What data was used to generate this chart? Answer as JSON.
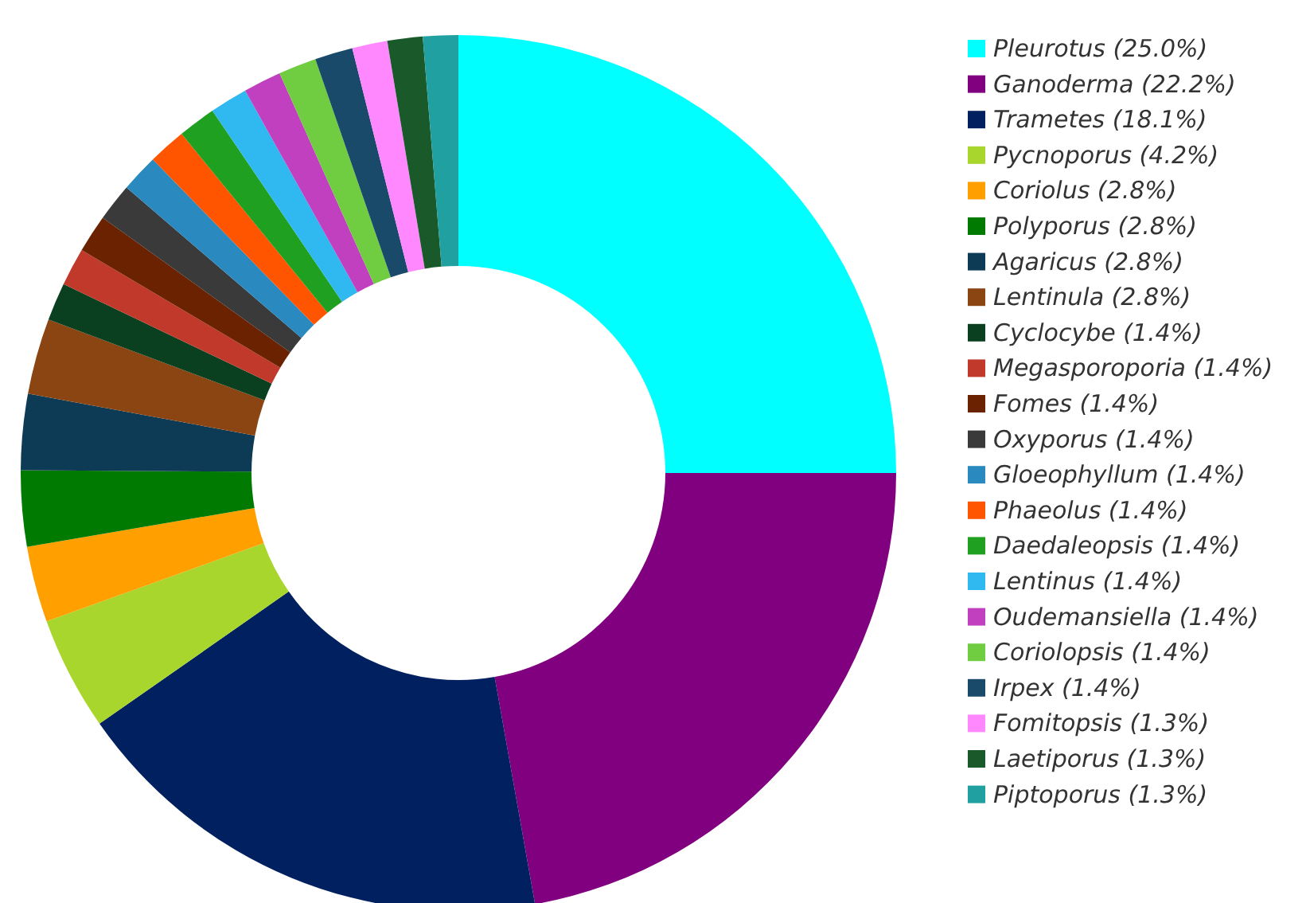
{
  "chart_data": {
    "type": "donut",
    "categories": [
      "Pleurotus (25.0%)",
      "Ganoderma (22.2%)",
      "Trametes (18.1%)",
      "Pycnoporus (4.2%)",
      "Coriolus (2.8%)",
      "Polyporus (2.8%)",
      "Agaricus (2.8%)",
      "Lentinula (2.8%)",
      "Cyclocybe (1.4%)",
      "Megasporoporia (1.4%)",
      "Fomes (1.4%)",
      "Oxyporus (1.4%)",
      "Gloeophyllum (1.4%)",
      "Phaeolus (1.4%)",
      "Daedaleopsis (1.4%)",
      "Lentinus (1.4%)",
      "Oudemansiella (1.4%)",
      "Coriolopsis (1.4%)",
      "Irpex (1.4%)",
      "Fomitopsis (1.3%)",
      "Laetiporus (1.3%)",
      "Piptoporus (1.3%)"
    ],
    "values": [
      25.0,
      22.2,
      18.1,
      4.2,
      2.8,
      2.8,
      2.8,
      2.8,
      1.4,
      1.4,
      1.4,
      1.4,
      1.4,
      1.4,
      1.4,
      1.4,
      1.4,
      1.4,
      1.4,
      1.3,
      1.3,
      1.3
    ],
    "colors": [
      "#00ffff",
      "#800080",
      "#002060",
      "#a8d62c",
      "#ffa000",
      "#007a00",
      "#0d3b55",
      "#8b4513",
      "#0a4020",
      "#c0392b",
      "#6b2200",
      "#3a3a3a",
      "#2a8ac0",
      "#ff5500",
      "#20a020",
      "#30b8f0",
      "#c040c0",
      "#70cc40",
      "#1a4a6a",
      "#ff88ff",
      "#1a5a2a",
      "#20a0a0"
    ],
    "legend": "right"
  }
}
